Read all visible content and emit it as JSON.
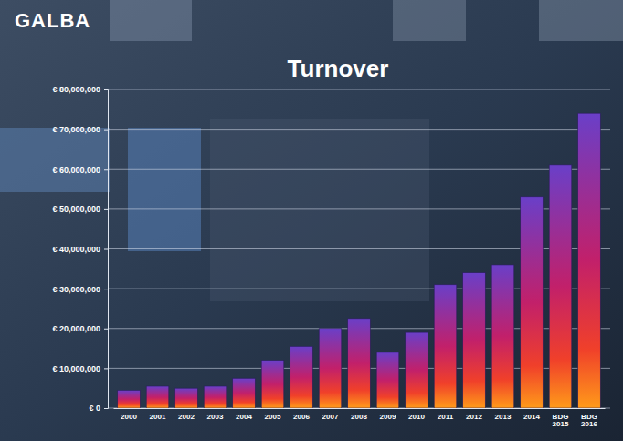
{
  "chart_data": {
    "type": "bar",
    "title": "Turnover",
    "annotations": [
      "GALBA"
    ],
    "categories": [
      "2000",
      "2001",
      "2002",
      "2003",
      "2004",
      "2005",
      "2006",
      "2007",
      "2008",
      "2009",
      "2010",
      "2011",
      "2012",
      "2013",
      "2014",
      "BDG 2015",
      "BDG 2016"
    ],
    "values": [
      4500000,
      5500000,
      5000000,
      5500000,
      7500000,
      12000000,
      15500000,
      20000000,
      22500000,
      14000000,
      19000000,
      31000000,
      34000000,
      36000000,
      53000000,
      61000000,
      74000000
    ],
    "color": "#6a3fc8",
    "ylim": [
      0,
      80000000
    ],
    "yticks": [
      {
        "value": 0,
        "label": "€ 0"
      },
      {
        "value": 10000000,
        "label": "€ 10,000,000"
      },
      {
        "value": 20000000,
        "label": "€ 20,000,000"
      },
      {
        "value": 30000000,
        "label": "€ 30,000,000"
      },
      {
        "value": 40000000,
        "label": "€ 40,000,000"
      },
      {
        "value": 50000000,
        "label": "€ 50,000,000"
      },
      {
        "value": 60000000,
        "label": "€ 60,000,000"
      },
      {
        "value": 70000000,
        "label": "€ 70,000,000"
      },
      {
        "value": 80000000,
        "label": "€ 80,000,000"
      }
    ],
    "grid": true
  }
}
